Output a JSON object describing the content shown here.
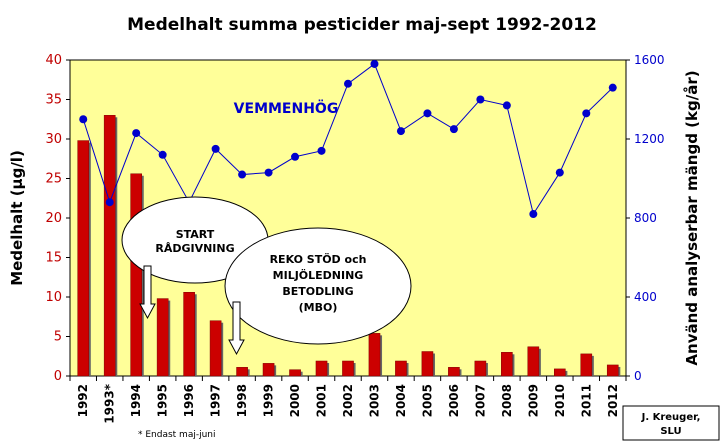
{
  "chart_data": {
    "type": "bar",
    "title": "Medelhalt summa pesticider maj-sept 1992-2012",
    "ylabel": "Medelhalt (µg/l)",
    "y2label": "Använd analyserbar mängd (kg/år)",
    "ylim": [
      0,
      40
    ],
    "y2lim": [
      0,
      1600
    ],
    "yticks": [
      "0",
      "5",
      "10",
      "15",
      "20",
      "25",
      "30",
      "35",
      "40"
    ],
    "y2ticks": [
      "0",
      "400",
      "800",
      "1200",
      "1600"
    ],
    "categories": [
      "1992",
      "1993*",
      "1994",
      "1995",
      "1996",
      "1997",
      "1998",
      "1999",
      "2000",
      "2001",
      "2002",
      "2003",
      "2004",
      "2005",
      "2006",
      "2007",
      "2008",
      "2009",
      "2010",
      "2011",
      "2012"
    ],
    "series": [
      {
        "type": "bar",
        "axis": "left",
        "color": "#cc0000",
        "values": [
          29.8,
          33.0,
          25.6,
          9.8,
          10.6,
          7.0,
          1.1,
          1.6,
          0.8,
          1.9,
          1.9,
          5.4,
          1.9,
          3.1,
          1.1,
          1.9,
          3.0,
          3.7,
          0.9,
          2.8,
          1.4
        ]
      },
      {
        "type": "line",
        "axis": "right",
        "name": "VEMMENHÖG",
        "color": "#0000cc",
        "values": [
          1300,
          880,
          1230,
          1120,
          880,
          1150,
          1020,
          1030,
          1110,
          1140,
          1480,
          1580,
          1240,
          1330,
          1250,
          1400,
          1370,
          820,
          1030,
          1330,
          1460
        ]
      }
    ],
    "plot_background": "#ffff99",
    "grid": false,
    "legend": "none",
    "annotations": {
      "bubble1": [
        "START",
        "RÅDGIVNING"
      ],
      "bubble2": [
        "REKO STÖD och",
        "MILJÖLEDNING",
        "BETODLING",
        "(MBO)"
      ],
      "footnote": "* Endast maj-juni",
      "credit": [
        "J. Kreuger,",
        "SLU"
      ]
    }
  }
}
